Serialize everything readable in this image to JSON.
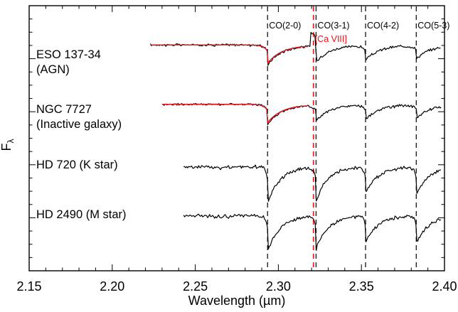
{
  "chart_data": {
    "type": "line",
    "xlabel": "Wavelength (µm)",
    "ylabel": "F",
    "ylabel_sub": "λ",
    "xlim": [
      2.15,
      2.4
    ],
    "ylim": [
      0,
      10
    ],
    "grid": false,
    "x_ticks": [
      "2.15",
      "2.20",
      "2.25",
      "2.30",
      "2.35",
      "2.40"
    ],
    "x_tick_values": [
      2.15,
      2.2,
      2.25,
      2.3,
      2.35,
      2.4
    ],
    "line_markers": [
      {
        "label": "CO(2-0)",
        "x": 2.2935,
        "color": "#000000"
      },
      {
        "label": "CO(3-1)",
        "x": 2.3227,
        "color": "#000000"
      },
      {
        "label": "CO(4-2)",
        "x": 2.3525,
        "color": "#000000"
      },
      {
        "label": "CO(5-3)",
        "x": 2.383,
        "color": "#000000"
      },
      {
        "label": "[Ca VIII]",
        "x": 2.3211,
        "color": "#e8141b"
      }
    ],
    "series": [
      {
        "label_line1": "ESO 137-34",
        "label_line2": "(AGN)",
        "color": "#000000",
        "x_range": [
          2.223,
          2.398
        ],
        "continuum": 8.52,
        "fit": {
          "color": "#e8141b",
          "x_range": [
            2.223,
            2.318
          ]
        }
      },
      {
        "label_line1": "NGC 7727",
        "label_line2": "(Inactive galaxy)",
        "color": "#000000",
        "x_range": [
          2.23,
          2.398
        ],
        "continuum": 6.28,
        "fit": {
          "color": "#e8141b",
          "x_range": [
            2.23,
            2.318
          ]
        }
      },
      {
        "label_line1": "HD 720 (K star)",
        "color": "#000000",
        "x_range": [
          2.243,
          2.398
        ],
        "continuum": 3.92
      },
      {
        "label_line1": "HD 2490 (M star)",
        "color": "#000000",
        "x_range": [
          2.243,
          2.398
        ],
        "continuum": 2.08
      }
    ]
  }
}
